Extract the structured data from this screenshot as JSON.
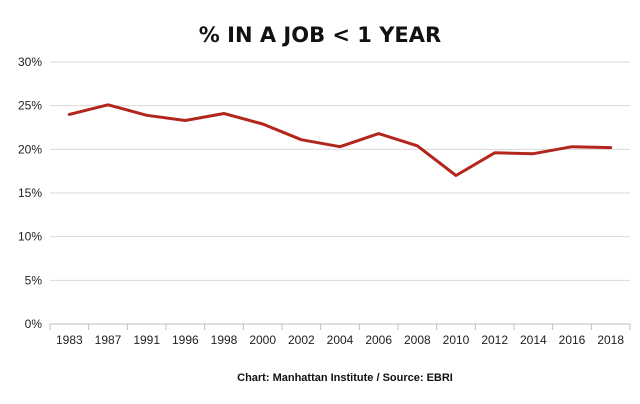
{
  "chart_data": {
    "type": "line",
    "title": "% IN A JOB < 1 YEAR",
    "xlabel": "",
    "ylabel": "",
    "categories": [
      "1983",
      "1987",
      "1991",
      "1996",
      "1998",
      "2000",
      "2002",
      "2004",
      "2006",
      "2008",
      "2010",
      "2012",
      "2014",
      "2016",
      "2018"
    ],
    "series": [
      {
        "values": [
          24.0,
          25.1,
          23.9,
          23.3,
          24.1,
          22.9,
          21.1,
          20.3,
          21.8,
          20.4,
          17.0,
          19.6,
          19.5,
          20.3,
          20.2
        ]
      }
    ],
    "ylim": [
      0,
      30
    ],
    "yticks": [
      "0%",
      "5%",
      "10%",
      "15%",
      "20%",
      "25%",
      "30%"
    ],
    "grid": true,
    "source": "Chart: Manhattan Institute  /  Source: EBRI",
    "colors": {
      "line": "#b3261e",
      "grid": "#d9d9d9"
    }
  }
}
